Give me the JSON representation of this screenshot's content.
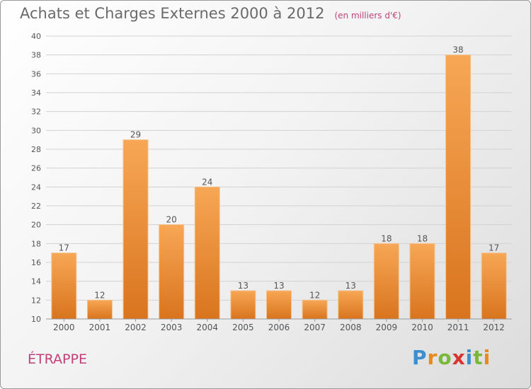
{
  "header": {
    "title": "Achats et Charges Externes 2000 à 2012",
    "subtitle": "(en milliers d'€)"
  },
  "commune": "ÉTRAPPE",
  "logo": {
    "text": "Proxiti",
    "letters": [
      {
        "ch": "P",
        "color": "#3b8fd1"
      },
      {
        "ch": "r",
        "color": "#e8891e"
      },
      {
        "ch": "o",
        "color": "#7ab83a"
      },
      {
        "ch": "x",
        "color": "#d9322f"
      },
      {
        "ch": "i",
        "color": "#3b8fd1"
      },
      {
        "ch": "t",
        "color": "#7ab83a"
      },
      {
        "ch": "i",
        "color": "#e8891e"
      }
    ]
  },
  "chart_data": {
    "type": "bar",
    "categories": [
      "2000",
      "2001",
      "2002",
      "2003",
      "2004",
      "2005",
      "2006",
      "2007",
      "2008",
      "2009",
      "2010",
      "2011",
      "2012"
    ],
    "values": [
      17,
      12,
      29,
      20,
      24,
      13,
      13,
      12,
      13,
      18,
      18,
      38,
      17
    ],
    "ylim": [
      10,
      40
    ],
    "yticks": [
      10,
      12,
      14,
      16,
      18,
      20,
      22,
      24,
      26,
      28,
      30,
      32,
      34,
      36,
      38,
      40
    ],
    "grid": true,
    "bar_color_top": "#f7a755",
    "bar_color_bottom": "#d9741e"
  }
}
